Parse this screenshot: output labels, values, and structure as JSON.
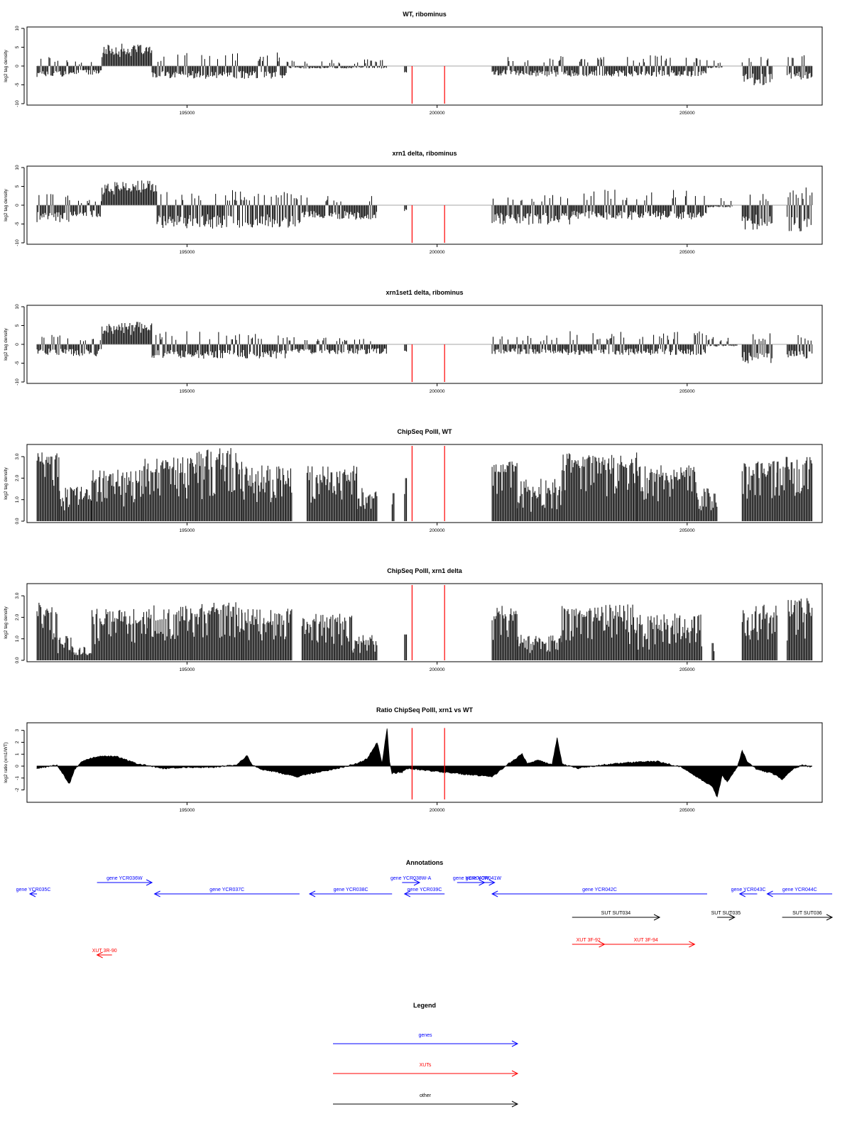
{
  "chart_data": [
    {
      "type": "bar",
      "title": "WT, ribominus",
      "ylabel": "log2 tag density",
      "xlabel": "",
      "xlim": [
        191800,
        207700
      ],
      "ylim": [
        -10,
        10
      ],
      "yticks": [
        -10,
        -5,
        0,
        5,
        10
      ],
      "xticks": [
        195000,
        200000,
        205000
      ],
      "x_tick_labels": [
        "195000",
        "200000",
        "205000"
      ],
      "markers": [
        199500,
        200150
      ],
      "segments": [
        [
          192000,
          192650,
          -2.5,
          2.8
        ],
        [
          192650,
          193300,
          -1.8,
          1.2
        ],
        [
          193300,
          194300,
          4.5,
          6.8
        ],
        [
          194300,
          197000,
          -2.6,
          3.6
        ],
        [
          197000,
          199000,
          -0.5,
          1.8
        ],
        [
          199350,
          199400,
          -2,
          3
        ],
        [
          201100,
          201900,
          -2,
          2.5
        ],
        [
          201900,
          205400,
          -2.2,
          3.0
        ],
        [
          205400,
          205700,
          -0.5,
          1.5
        ],
        [
          206100,
          206700,
          -4,
          3
        ],
        [
          206700,
          207000,
          0,
          0
        ],
        [
          207000,
          207500,
          -3,
          3
        ]
      ],
      "grid": false
    },
    {
      "type": "bar",
      "title": "xrn1 delta, ribominus",
      "ylabel": "log2 tag density",
      "xlabel": "",
      "xlim": [
        191800,
        207700
      ],
      "ylim": [
        -10,
        10
      ],
      "yticks": [
        -10,
        -5,
        0,
        5,
        10
      ],
      "xticks": [
        195000,
        200000,
        205000
      ],
      "x_tick_labels": [
        "195000",
        "200000",
        "205000"
      ],
      "markers": [
        199500,
        200150
      ],
      "segments": [
        [
          192000,
          192650,
          -3.5,
          3.0
        ],
        [
          192650,
          193300,
          -2.5,
          1.5
        ],
        [
          193300,
          194400,
          5.0,
          8.0
        ],
        [
          194400,
          197300,
          -4.8,
          4.0
        ],
        [
          197300,
          198800,
          -3.0,
          2.5
        ],
        [
          199350,
          199400,
          -2,
          3
        ],
        [
          201100,
          202700,
          -4.0,
          3.0
        ],
        [
          202700,
          205400,
          -3.0,
          4.2
        ],
        [
          205400,
          205900,
          -0.5,
          2.0
        ],
        [
          206100,
          206700,
          -5.0,
          3.0
        ],
        [
          207000,
          207500,
          -6.0,
          4.8
        ]
      ],
      "grid": false
    },
    {
      "type": "bar",
      "title": "xrn1set1 delta, ribominus",
      "ylabel": "log2 tag density",
      "xlabel": "",
      "xlim": [
        191800,
        207700
      ],
      "ylim": [
        -10,
        10
      ],
      "yticks": [
        -10,
        -5,
        0,
        5,
        10
      ],
      "xticks": [
        195000,
        200000,
        205000
      ],
      "x_tick_labels": [
        "195000",
        "200000",
        "205000"
      ],
      "markers": [
        199500,
        200150
      ],
      "segments": [
        [
          192000,
          192650,
          -2.2,
          2.5
        ],
        [
          192650,
          193300,
          -2.5,
          1.5
        ],
        [
          193300,
          194300,
          4.5,
          7.5
        ],
        [
          194300,
          197000,
          -3.0,
          3.5
        ],
        [
          197000,
          199000,
          -2.0,
          2.0
        ],
        [
          199350,
          199400,
          -2,
          3
        ],
        [
          201100,
          202600,
          -2.0,
          2.5
        ],
        [
          202600,
          205400,
          -2.2,
          3.5
        ],
        [
          205400,
          206000,
          -0.5,
          2.0
        ],
        [
          206100,
          206700,
          -4.0,
          3.0
        ],
        [
          207000,
          207500,
          -3.0,
          3.0
        ]
      ],
      "grid": false
    },
    {
      "type": "bar",
      "title": "ChipSeq PolII, WT",
      "ylabel": "log2 tag density",
      "xlabel": "",
      "xlim": [
        191800,
        207700
      ],
      "ylim": [
        0,
        3.5
      ],
      "yticks": [
        0.0,
        1.0,
        2.0,
        3.0
      ],
      "ytick_labels": [
        "0.0",
        "1.0",
        "2.0",
        "3.0"
      ],
      "xticks": [
        195000,
        200000,
        205000
      ],
      "x_tick_labels": [
        "195000",
        "200000",
        "205000"
      ],
      "markers": [
        199500,
        200150
      ],
      "segments": [
        [
          192000,
          192450,
          2.6,
          3.2
        ],
        [
          192450,
          193100,
          1.0,
          1.6
        ],
        [
          193100,
          194100,
          1.6,
          2.4
        ],
        [
          194100,
          195200,
          2.2,
          3.0
        ],
        [
          195200,
          196100,
          2.4,
          3.4
        ],
        [
          196100,
          197100,
          1.6,
          2.6
        ],
        [
          197400,
          198400,
          1.6,
          2.6
        ],
        [
          198400,
          198800,
          1.0,
          1.6
        ],
        [
          199100,
          199150,
          1.3,
          1.3
        ],
        [
          199350,
          199400,
          2.0,
          2.0
        ],
        [
          201100,
          201600,
          2.2,
          2.8
        ],
        [
          201600,
          202500,
          1.0,
          2.0
        ],
        [
          202500,
          204000,
          2.2,
          3.2
        ],
        [
          204000,
          205200,
          1.8,
          2.6
        ],
        [
          205200,
          205600,
          1.0,
          1.6
        ],
        [
          206100,
          206800,
          2.0,
          2.8
        ],
        [
          206800,
          207500,
          2.4,
          3.0
        ]
      ],
      "grid": false
    },
    {
      "type": "bar",
      "title": "ChipSeq PolII, xrn1 delta",
      "ylabel": "log2 tag density",
      "xlabel": "",
      "xlim": [
        191800,
        207700
      ],
      "ylim": [
        0,
        3.5
      ],
      "yticks": [
        0.0,
        1.0,
        2.0,
        3.0
      ],
      "ytick_labels": [
        "0.0",
        "1.0",
        "2.0",
        "3.0"
      ],
      "xticks": [
        195000,
        200000,
        205000
      ],
      "x_tick_labels": [
        "195000",
        "200000",
        "205000"
      ],
      "markers": [
        199500,
        200150
      ],
      "segments": [
        [
          192000,
          192400,
          2.0,
          2.7
        ],
        [
          192400,
          192700,
          0.7,
          1.2
        ],
        [
          192700,
          193100,
          0.3,
          0.7
        ],
        [
          193100,
          194200,
          1.6,
          2.4
        ],
        [
          194200,
          195100,
          1.8,
          2.6
        ],
        [
          195100,
          196100,
          2.0,
          2.7
        ],
        [
          196100,
          197100,
          1.6,
          2.4
        ],
        [
          197300,
          198300,
          1.4,
          2.2
        ],
        [
          198300,
          198800,
          0.7,
          1.2
        ],
        [
          199350,
          199400,
          1.2,
          1.2
        ],
        [
          201100,
          201600,
          1.8,
          2.6
        ],
        [
          201600,
          202500,
          0.7,
          1.2
        ],
        [
          202500,
          204000,
          1.8,
          2.6
        ],
        [
          204000,
          205300,
          1.2,
          2.2
        ],
        [
          205500,
          205550,
          0.8,
          0.8
        ],
        [
          206100,
          206800,
          1.6,
          2.6
        ],
        [
          207000,
          207500,
          2.0,
          2.9
        ]
      ],
      "grid": false
    },
    {
      "type": "area",
      "title": "Ratio ChipSeq PolII, xrn1 vs WT",
      "ylabel": "log2 ratio (xrn1/WT)",
      "xlabel": "",
      "xlim": [
        191800,
        207700
      ],
      "ylim": [
        -2.8,
        3.4
      ],
      "yticks": [
        -2,
        -1,
        0,
        1,
        2,
        3
      ],
      "xticks": [
        195000,
        200000,
        205000
      ],
      "x_tick_labels": [
        "195000",
        "200000",
        "205000"
      ],
      "markers": [
        199500,
        200150
      ],
      "x": [
        192000,
        192400,
        192650,
        192750,
        192900,
        193200,
        193600,
        194000,
        194500,
        195000,
        195500,
        196000,
        196200,
        196300,
        196500,
        196800,
        197200,
        197500,
        198000,
        198400,
        198600,
        198800,
        198900,
        199000,
        199050,
        199100,
        199300,
        199400,
        201100,
        201400,
        201700,
        201800,
        202000,
        202300,
        202400,
        202500,
        202800,
        203300,
        203800,
        204400,
        204900,
        205300,
        205500,
        205600,
        205700,
        205800,
        206000,
        206100,
        206200,
        206400,
        206700,
        206900,
        207100,
        207300,
        207500
      ],
      "y": [
        -0.2,
        0.1,
        -1.5,
        -0.3,
        0.4,
        0.8,
        0.8,
        0.2,
        -0.2,
        -0.1,
        -0.1,
        0.1,
        0.9,
        0.1,
        -0.3,
        -0.5,
        -0.9,
        -0.6,
        -0.2,
        0.2,
        0.6,
        2.0,
        0.2,
        3.2,
        0.4,
        -0.6,
        -0.5,
        -0.2,
        -0.9,
        0.1,
        1.0,
        0.2,
        0.5,
        0.1,
        2.4,
        0.2,
        -0.2,
        0.1,
        0.3,
        0.4,
        -0.1,
        -1.2,
        -1.7,
        -2.6,
        -0.8,
        -1.3,
        -0.1,
        1.3,
        0.4,
        -0.3,
        -0.6,
        -1.1,
        -0.3,
        0.1,
        -0.1
      ],
      "grid": false
    }
  ],
  "annotations": {
    "title": "Annotations",
    "items": [
      {
        "label": "gene YCR035C",
        "x1": 192000,
        "x2": 191300,
        "row": 1,
        "color": "#0000ff"
      },
      {
        "label": "gene YCR036W",
        "x1": 193200,
        "x2": 194300,
        "row": 0,
        "color": "#0000ff"
      },
      {
        "label": "gene YCR037C",
        "x1": 197250,
        "x2": 194350,
        "row": 1,
        "color": "#0000ff"
      },
      {
        "label": "gene YCR038C",
        "x1": 199100,
        "x2": 197450,
        "row": 1,
        "color": "#0000ff"
      },
      {
        "label": "gene YCR038W-A",
        "x1": 199300,
        "x2": 199650,
        "row": 0,
        "color": "#0000ff"
      },
      {
        "label": "gene YCR039C",
        "x1": 200150,
        "x2": 199350,
        "row": 1,
        "color": "#0000ff"
      },
      {
        "label": "gene YCR040W",
        "x1": 200400,
        "x2": 200950,
        "row": 0,
        "color": "#0000ff"
      },
      {
        "label": "gene YCR041W",
        "x1": 200700,
        "x2": 201150,
        "row": 0,
        "color": "#0000ff"
      },
      {
        "label": "gene YCR042C",
        "x1": 205400,
        "x2": 201100,
        "row": 1,
        "color": "#0000ff"
      },
      {
        "label": "gene YCR043C",
        "x1": 206400,
        "x2": 206050,
        "row": 1,
        "color": "#0000ff"
      },
      {
        "label": "gene YCR044C",
        "x1": 207900,
        "x2": 206600,
        "row": 1,
        "color": "#0000ff"
      },
      {
        "label": "SUT SUT034",
        "x1": 202700,
        "x2": 204450,
        "row": 2,
        "color": "#000000"
      },
      {
        "label": "SUT SUT035",
        "x1": 205600,
        "x2": 205950,
        "row": 2,
        "color": "#000000"
      },
      {
        "label": "SUT SUT036",
        "x1": 206900,
        "x2": 207900,
        "row": 2,
        "color": "#000000"
      },
      {
        "label": "XUT 3F-92",
        "x1": 202700,
        "x2": 203350,
        "row": 3,
        "color": "#ff0000"
      },
      {
        "label": "XUT 3F-94",
        "x1": 203200,
        "x2": 205150,
        "row": 3,
        "color": "#ff0000"
      },
      {
        "label": "XUT 3R-90",
        "x1": 193500,
        "x2": 193200,
        "row": 4,
        "color": "#ff0000"
      }
    ]
  },
  "legend": {
    "title": "Legend",
    "items": [
      {
        "label": "genes",
        "color": "#0000ff"
      },
      {
        "label": "XUTs",
        "color": "#ff0000"
      },
      {
        "label": "other",
        "color": "#000000"
      }
    ]
  }
}
